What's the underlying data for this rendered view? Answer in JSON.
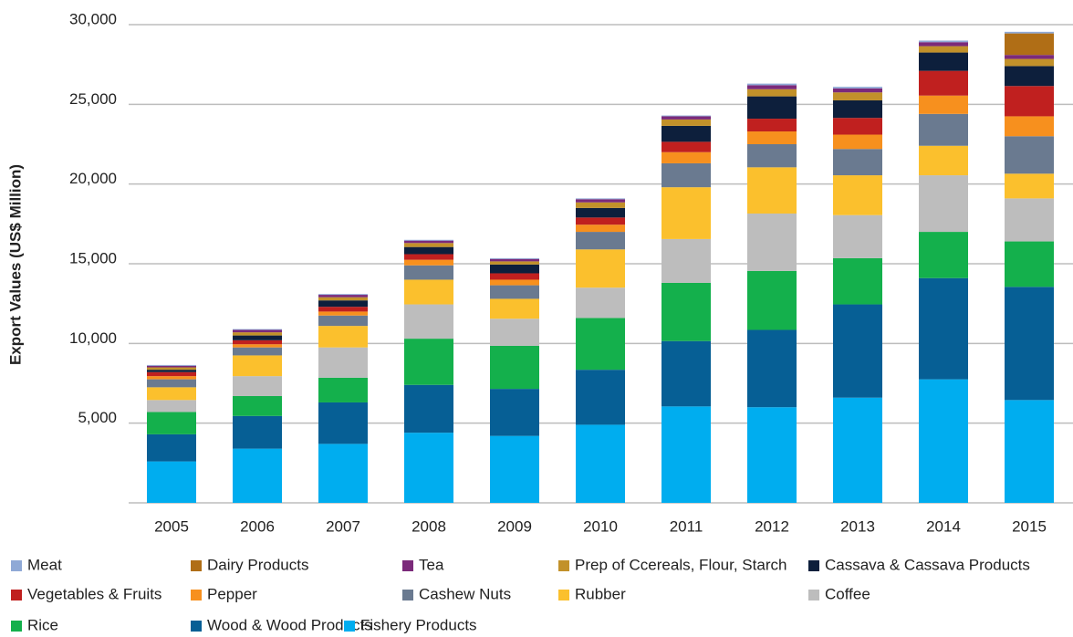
{
  "chart_data": {
    "type": "stacked_bar",
    "y_label": "Export Values (US$ Million)",
    "categories": [
      "2005",
      "2006",
      "2007",
      "2008",
      "2009",
      "2010",
      "2011",
      "2012",
      "2013",
      "2014",
      "2015"
    ],
    "ylim": [
      0,
      30000
    ],
    "yticks": [
      {
        "value": 5000,
        "label": "5,000"
      },
      {
        "value": 10000,
        "label": "10,000"
      },
      {
        "value": 15000,
        "label": "15,000"
      },
      {
        "value": 20000,
        "label": "20,000"
      },
      {
        "value": 25000,
        "label": "25,000"
      },
      {
        "value": 30000,
        "label": "30,000"
      }
    ],
    "grid": true,
    "series": [
      {
        "name": "Meat",
        "color": "#8fa9d6",
        "values": [
          50,
          50,
          50,
          50,
          50,
          50,
          50,
          100,
          100,
          100,
          100
        ]
      },
      {
        "name": "Dairy Products",
        "color": "#b06e16",
        "values": [
          0,
          0,
          0,
          0,
          0,
          0,
          0,
          0,
          0,
          0,
          1350
        ]
      },
      {
        "name": "Tea",
        "color": "#7b2a7a",
        "values": [
          100,
          150,
          150,
          150,
          150,
          200,
          200,
          250,
          250,
          250,
          250
        ]
      },
      {
        "name": "Prep of Ccereals, Flour, Starch",
        "color": "#c2912a",
        "values": [
          150,
          200,
          200,
          250,
          200,
          350,
          400,
          450,
          500,
          400,
          450
        ]
      },
      {
        "name": "Cassava & Cassava Products",
        "color": "#0d1f3c",
        "values": [
          150,
          300,
          400,
          450,
          550,
          600,
          1000,
          1400,
          1100,
          1150,
          1250
        ]
      },
      {
        "name": "Vegetables & Fruits",
        "color": "#c0201f",
        "values": [
          250,
          250,
          300,
          350,
          400,
          450,
          650,
          800,
          1050,
          1550,
          1900
        ]
      },
      {
        "name": "Pepper",
        "color": "#f7901e",
        "values": [
          200,
          200,
          250,
          350,
          350,
          450,
          700,
          800,
          900,
          1150,
          1250
        ]
      },
      {
        "name": "Cashew Nuts",
        "color": "#6a7a90",
        "values": [
          500,
          500,
          650,
          900,
          850,
          1100,
          1500,
          1450,
          1650,
          2000,
          2350
        ]
      },
      {
        "name": "Rubber",
        "color": "#fbc02d",
        "values": [
          800,
          1300,
          1350,
          1550,
          1250,
          2400,
          3250,
          2900,
          2500,
          1850,
          1550
        ]
      },
      {
        "name": "Coffee",
        "color": "#bdbdbd",
        "values": [
          750,
          1250,
          1900,
          2150,
          1700,
          1900,
          2750,
          3600,
          2700,
          3550,
          2700
        ]
      },
      {
        "name": "Rice",
        "color": "#14b04c",
        "values": [
          1400,
          1250,
          1550,
          2900,
          2700,
          3250,
          3650,
          3700,
          2900,
          2900,
          2850
        ]
      },
      {
        "name": "Wood & Wood Products",
        "color": "#065f95",
        "values": [
          1700,
          2050,
          2600,
          3000,
          2950,
          3450,
          4100,
          4850,
          5850,
          6350,
          7100
        ]
      },
      {
        "name": "Fishery Products",
        "color": "#00adef",
        "values": [
          2600,
          3400,
          3700,
          4400,
          4200,
          4900,
          6050,
          6000,
          6600,
          7750,
          6450
        ]
      }
    ]
  }
}
